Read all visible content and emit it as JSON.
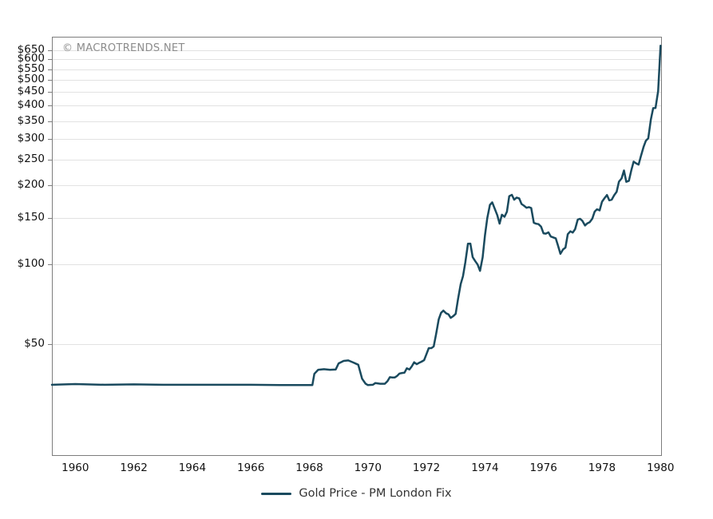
{
  "chart": {
    "watermark": "© MACROTRENDS.NET",
    "legend": {
      "label": "Gold Price - PM London Fix"
    }
  },
  "chart_data": {
    "type": "line",
    "title": "",
    "xlabel": "",
    "ylabel": "",
    "y_scale": "log",
    "grid": "horizontal-only",
    "legend_position": "bottom-center",
    "x_range": [
      1959.2,
      1980.02
    ],
    "y_range": [
      19,
      730
    ],
    "x_ticks": [
      {
        "v": 1960,
        "label": "1960"
      },
      {
        "v": 1962,
        "label": "1962"
      },
      {
        "v": 1964,
        "label": "1964"
      },
      {
        "v": 1966,
        "label": "1966"
      },
      {
        "v": 1968,
        "label": "1968"
      },
      {
        "v": 1970,
        "label": "1970"
      },
      {
        "v": 1972,
        "label": "1972"
      },
      {
        "v": 1974,
        "label": "1974"
      },
      {
        "v": 1976,
        "label": "1976"
      },
      {
        "v": 1978,
        "label": "1978"
      },
      {
        "v": 1980,
        "label": "1980"
      }
    ],
    "y_ticks": [
      {
        "v": 50,
        "label": "$50"
      },
      {
        "v": 100,
        "label": "$100"
      },
      {
        "v": 150,
        "label": "$150"
      },
      {
        "v": 200,
        "label": "$200"
      },
      {
        "v": 250,
        "label": "$250"
      },
      {
        "v": 300,
        "label": "$300"
      },
      {
        "v": 350,
        "label": "$350"
      },
      {
        "v": 400,
        "label": "$400"
      },
      {
        "v": 450,
        "label": "$450"
      },
      {
        "v": 500,
        "label": "$500"
      },
      {
        "v": 550,
        "label": "$550"
      },
      {
        "v": 600,
        "label": "$600"
      },
      {
        "v": 650,
        "label": "$650"
      }
    ],
    "colors": {
      "line": "#1a4a5e",
      "grid": "#e2e2e2",
      "border": "#7d7d7d",
      "tick": "#7d7d7d"
    },
    "series": [
      {
        "name": "Gold Price - PM London Fix",
        "color": "#1a4a5e",
        "points": [
          [
            1959.2,
            35.1
          ],
          [
            1960,
            35.3
          ],
          [
            1961,
            35.1
          ],
          [
            1962,
            35.2
          ],
          [
            1963,
            35.1
          ],
          [
            1964,
            35.1
          ],
          [
            1965,
            35.1
          ],
          [
            1966,
            35.1
          ],
          [
            1967,
            35.0
          ],
          [
            1968.1,
            35.0
          ],
          [
            1968.17,
            38.6
          ],
          [
            1968.3,
            40.0
          ],
          [
            1968.5,
            40.2
          ],
          [
            1968.7,
            40.0
          ],
          [
            1968.9,
            40.1
          ],
          [
            1969.0,
            42.3
          ],
          [
            1969.17,
            43.2
          ],
          [
            1969.33,
            43.4
          ],
          [
            1969.5,
            42.6
          ],
          [
            1969.67,
            41.8
          ],
          [
            1969.8,
            37.0
          ],
          [
            1969.92,
            35.4
          ],
          [
            1970.0,
            35.0
          ],
          [
            1970.17,
            35.1
          ],
          [
            1970.25,
            35.6
          ],
          [
            1970.42,
            35.4
          ],
          [
            1970.58,
            35.4
          ],
          [
            1970.67,
            36.2
          ],
          [
            1970.75,
            37.5
          ],
          [
            1970.83,
            37.4
          ],
          [
            1970.92,
            37.4
          ],
          [
            1971.0,
            37.9
          ],
          [
            1971.08,
            38.7
          ],
          [
            1971.17,
            38.9
          ],
          [
            1971.25,
            39.0
          ],
          [
            1971.33,
            40.5
          ],
          [
            1971.42,
            40.1
          ],
          [
            1971.5,
            41.2
          ],
          [
            1971.58,
            42.7
          ],
          [
            1971.67,
            42.0
          ],
          [
            1971.75,
            42.5
          ],
          [
            1971.83,
            42.9
          ],
          [
            1971.92,
            43.5
          ],
          [
            1972.0,
            45.8
          ],
          [
            1972.08,
            48.3
          ],
          [
            1972.17,
            48.3
          ],
          [
            1972.25,
            49.0
          ],
          [
            1972.33,
            54.6
          ],
          [
            1972.42,
            62.1
          ],
          [
            1972.5,
            65.7
          ],
          [
            1972.58,
            67.0
          ],
          [
            1972.67,
            65.5
          ],
          [
            1972.75,
            64.9
          ],
          [
            1972.83,
            62.9
          ],
          [
            1972.92,
            63.9
          ],
          [
            1973.0,
            65.1
          ],
          [
            1973.08,
            74.2
          ],
          [
            1973.17,
            84.4
          ],
          [
            1973.25,
            90.5
          ],
          [
            1973.33,
            102.0
          ],
          [
            1973.42,
            120.1
          ],
          [
            1973.5,
            120.2
          ],
          [
            1973.58,
            106.8
          ],
          [
            1973.67,
            103.0
          ],
          [
            1973.75,
            100.1
          ],
          [
            1973.83,
            94.8
          ],
          [
            1973.92,
            106.7
          ],
          [
            1974.0,
            129.2
          ],
          [
            1974.08,
            150.2
          ],
          [
            1974.17,
            168.4
          ],
          [
            1974.25,
            172.2
          ],
          [
            1974.33,
            163.3
          ],
          [
            1974.42,
            154.1
          ],
          [
            1974.5,
            143.0
          ],
          [
            1974.58,
            154.6
          ],
          [
            1974.67,
            151.8
          ],
          [
            1974.75,
            158.8
          ],
          [
            1974.83,
            181.7
          ],
          [
            1974.92,
            183.9
          ],
          [
            1975.0,
            176.3
          ],
          [
            1975.08,
            179.5
          ],
          [
            1975.17,
            178.2
          ],
          [
            1975.25,
            169.7
          ],
          [
            1975.33,
            167.4
          ],
          [
            1975.42,
            164.3
          ],
          [
            1975.5,
            165.2
          ],
          [
            1975.58,
            163.9
          ],
          [
            1975.67,
            144.1
          ],
          [
            1975.75,
            142.9
          ],
          [
            1975.83,
            142.4
          ],
          [
            1975.92,
            139.3
          ],
          [
            1976.0,
            131.5
          ],
          [
            1976.08,
            131.1
          ],
          [
            1976.17,
            132.6
          ],
          [
            1976.25,
            127.9
          ],
          [
            1976.33,
            126.9
          ],
          [
            1976.42,
            125.7
          ],
          [
            1976.5,
            117.8
          ],
          [
            1976.58,
            109.9
          ],
          [
            1976.67,
            114.2
          ],
          [
            1976.75,
            116.1
          ],
          [
            1976.83,
            130.5
          ],
          [
            1976.92,
            133.8
          ],
          [
            1977.0,
            132.3
          ],
          [
            1977.08,
            136.3
          ],
          [
            1977.17,
            148.2
          ],
          [
            1977.25,
            149.2
          ],
          [
            1977.33,
            146.6
          ],
          [
            1977.42,
            140.8
          ],
          [
            1977.5,
            143.4
          ],
          [
            1977.58,
            144.9
          ],
          [
            1977.67,
            149.5
          ],
          [
            1977.75,
            158.9
          ],
          [
            1977.83,
            162.1
          ],
          [
            1977.92,
            160.5
          ],
          [
            1978.0,
            173.2
          ],
          [
            1978.08,
            178.2
          ],
          [
            1978.17,
            183.7
          ],
          [
            1978.25,
            175.3
          ],
          [
            1978.33,
            176.3
          ],
          [
            1978.42,
            183.7
          ],
          [
            1978.5,
            188.7
          ],
          [
            1978.58,
            206.3
          ],
          [
            1978.67,
            212.1
          ],
          [
            1978.75,
            227.4
          ],
          [
            1978.83,
            206.0
          ],
          [
            1978.92,
            207.8
          ],
          [
            1979.0,
            227.3
          ],
          [
            1979.08,
            245.7
          ],
          [
            1979.17,
            242.0
          ],
          [
            1979.25,
            239.2
          ],
          [
            1979.33,
            257.6
          ],
          [
            1979.42,
            279.1
          ],
          [
            1979.5,
            294.7
          ],
          [
            1979.58,
            300.8
          ],
          [
            1979.67,
            355.1
          ],
          [
            1979.75,
            391.7
          ],
          [
            1979.83,
            392.0
          ],
          [
            1979.92,
            455.1
          ],
          [
            1980.0,
            675.3
          ]
        ]
      }
    ]
  }
}
